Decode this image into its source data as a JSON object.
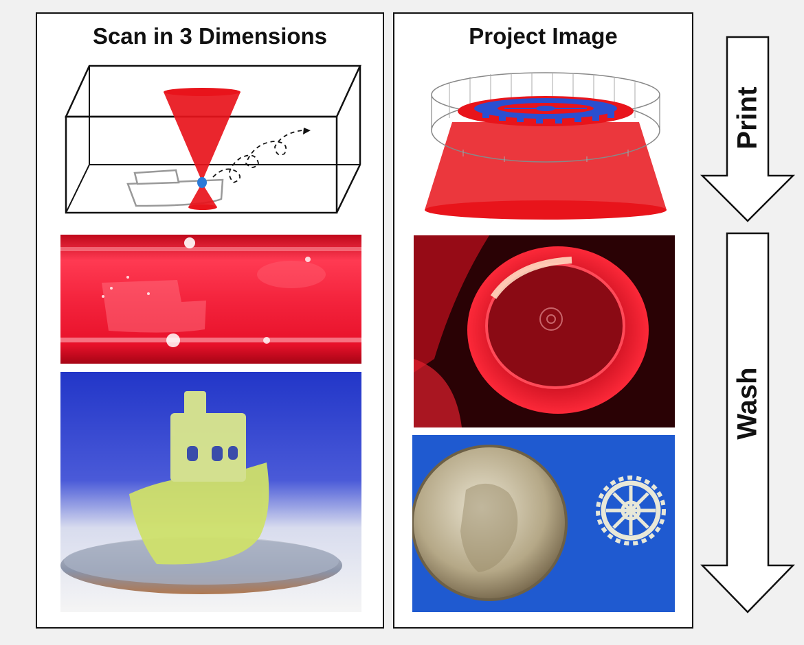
{
  "panels": {
    "left": {
      "title": "Scan in 3 Dimensions"
    },
    "right": {
      "title": "Project Image"
    }
  },
  "steps": [
    {
      "label": "Print"
    },
    {
      "label": "Wash"
    }
  ],
  "colors": {
    "laser_red": "#e8141b",
    "gear_blue": "#2a4fd0",
    "resin_yellow": "#d4e27a",
    "background_blue": "#2236c8"
  }
}
